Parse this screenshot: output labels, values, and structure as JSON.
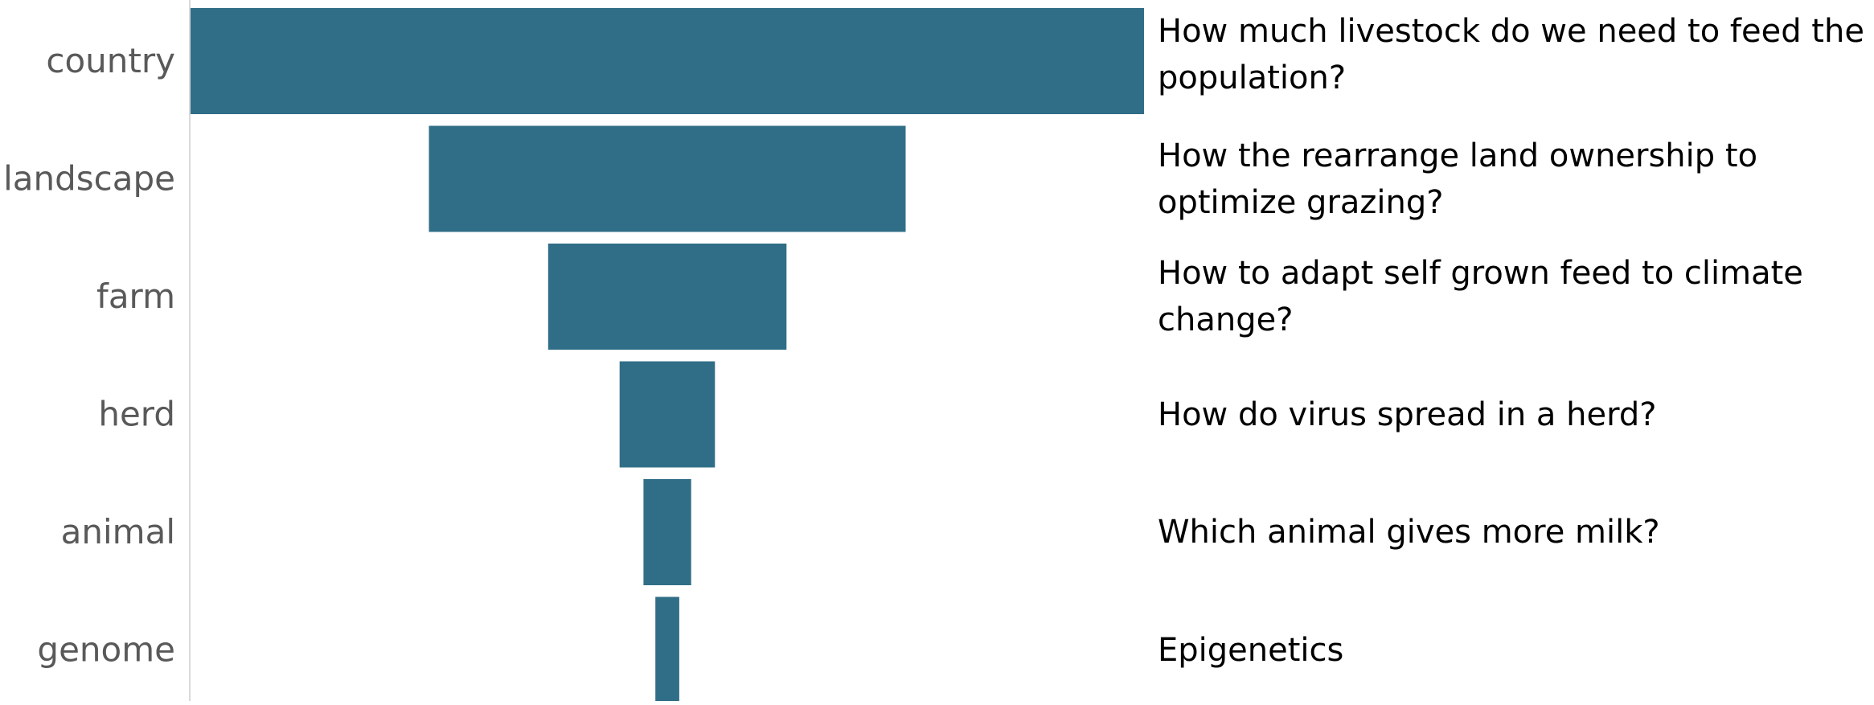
{
  "colors": {
    "bar": "#306E87",
    "axis": "#d9d9d9",
    "category_text": "#595959",
    "question_text": "#000000"
  },
  "chart_data": {
    "type": "bar",
    "orientation": "horizontal",
    "style": "funnel",
    "title": "",
    "xlabel": "",
    "ylabel": "",
    "grid": false,
    "categories": [
      "country",
      "landscape",
      "farm",
      "herd",
      "animal",
      "genome"
    ],
    "values": [
      100,
      50,
      25,
      10,
      5,
      2.5
    ],
    "xlim": [
      0,
      100
    ],
    "annotations": [
      "How much livestock do we need to feed the population?",
      "How the rearrange land ownership to optimize grazing?",
      "How to adapt self grown feed to climate change?",
      "How do virus spread in a herd?",
      "Which animal gives more milk?",
      "Epigenetics"
    ]
  }
}
